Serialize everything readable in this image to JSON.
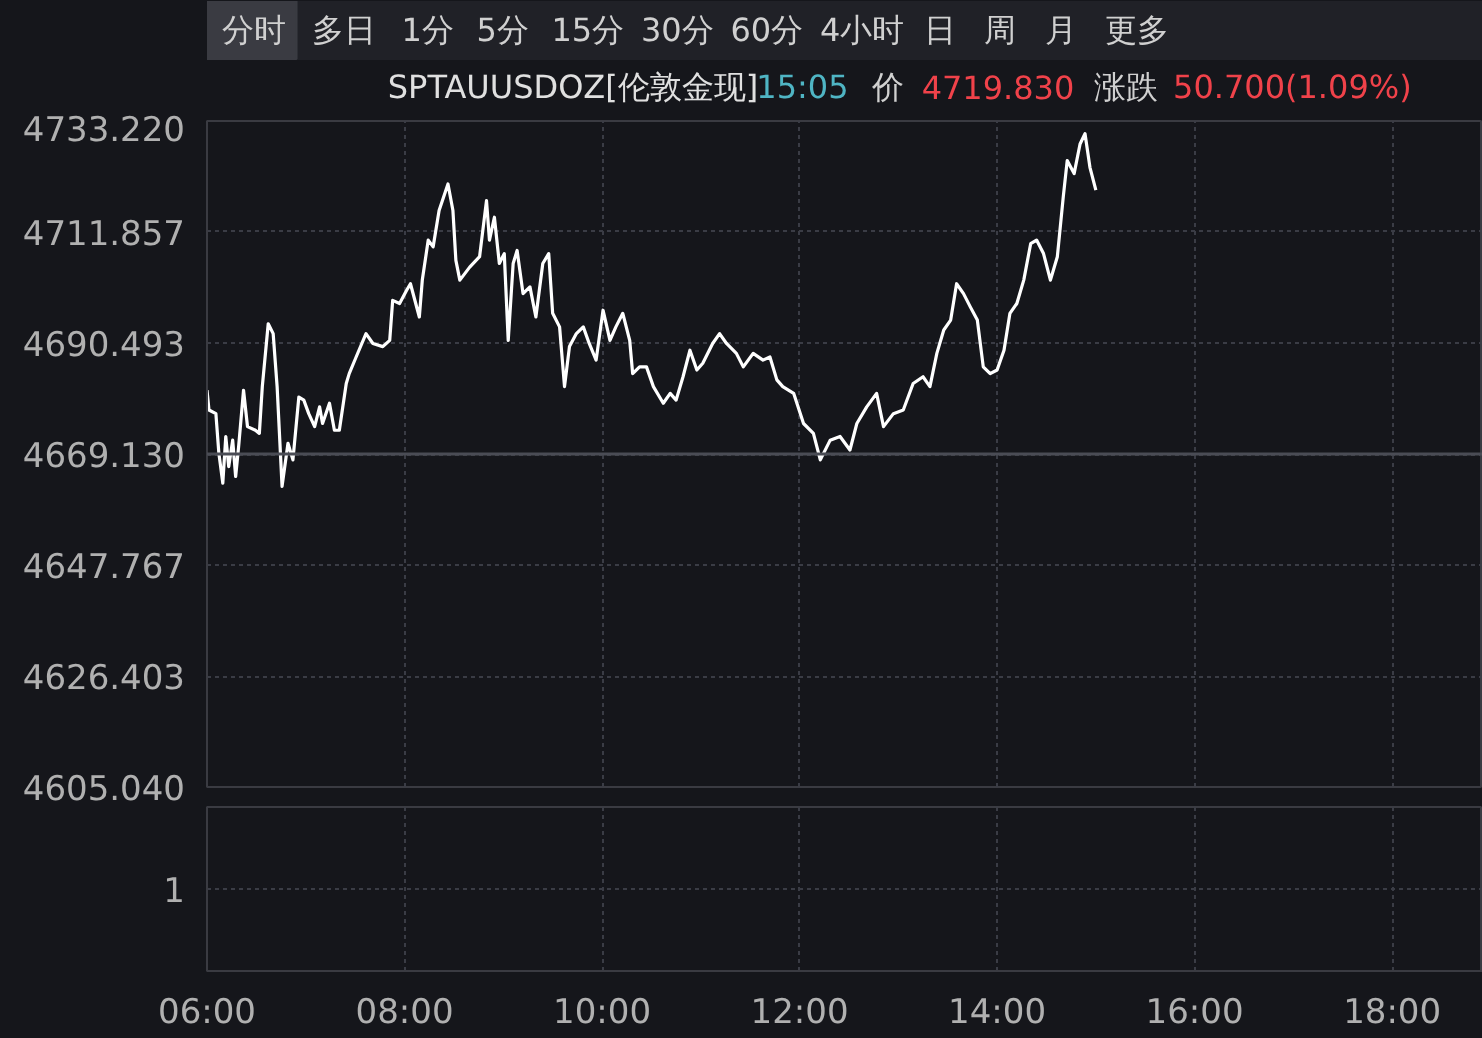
{
  "chart_data": [
    {
      "type": "line",
      "title": "SPTAUUSDOZ[伦敦金现]",
      "subtitle": "15:05 价 4719.830 涨跌 50.700(1.09%)",
      "annotations": [
        "分时",
        "多日",
        "1分",
        "5分",
        "15分",
        "30分",
        "60分",
        "4小时",
        "日",
        "周",
        "月",
        "更多"
      ],
      "x": [
        6.0,
        6.02,
        6.09,
        6.12,
        6.16,
        6.19,
        6.22,
        6.26,
        6.29,
        6.32,
        6.37,
        6.41,
        6.49,
        6.53,
        6.56,
        6.62,
        6.67,
        6.71,
        6.76,
        6.82,
        6.87,
        6.93,
        6.98,
        7.03,
        7.09,
        7.14,
        7.17,
        7.24,
        7.29,
        7.34,
        7.41,
        7.44,
        7.51,
        7.61,
        7.68,
        7.78,
        7.85,
        7.88,
        7.95,
        8.02,
        8.06,
        8.15,
        8.18,
        8.24,
        8.29,
        8.35,
        8.44,
        8.49,
        8.52,
        8.56,
        8.66,
        8.76,
        8.83,
        8.86,
        8.91,
        8.96,
        9.01,
        9.05,
        9.1,
        9.14,
        9.2,
        9.27,
        9.33,
        9.4,
        9.46,
        9.5,
        9.57,
        9.62,
        9.67,
        9.74,
        9.81,
        9.87,
        9.94,
        10.01,
        10.08,
        10.14,
        10.21,
        10.28,
        10.31,
        10.38,
        10.45,
        10.52,
        10.62,
        10.69,
        10.75,
        10.82,
        10.89,
        10.96,
        11.02,
        11.12,
        11.19,
        11.26,
        11.36,
        11.43,
        11.53,
        11.63,
        11.7,
        11.77,
        11.83,
        11.94,
        12.04,
        12.14,
        12.21,
        12.31,
        12.41,
        12.51,
        12.58,
        12.68,
        12.78,
        12.85,
        12.95,
        13.05,
        13.15,
        13.25,
        13.32,
        13.39,
        13.46,
        13.53,
        13.59,
        13.66,
        13.73,
        13.8,
        13.86,
        13.93,
        14.0,
        14.07,
        14.13,
        14.2,
        14.27,
        14.34,
        14.4,
        14.47,
        14.54,
        14.61,
        14.67,
        14.71,
        14.78,
        14.84,
        14.89,
        14.94,
        15.0
      ],
      "series": [
        {
          "color": "#ffffff",
          "values": [
            4681.4,
            4677.6,
            4676.9,
            4669.3,
            4663.5,
            4672.5,
            4666.7,
            4671.8,
            4664.8,
            4670.5,
            4681.4,
            4674.4,
            4673.7,
            4673.1,
            4682.1,
            4694.2,
            4692.3,
            4682.1,
            4662.9,
            4671.2,
            4668.0,
            4680.1,
            4679.5,
            4676.9,
            4674.4,
            4678.2,
            4675.0,
            4678.9,
            4673.7,
            4673.7,
            4682.7,
            4684.6,
            4687.8,
            4692.3,
            4690.4,
            4689.8,
            4691.0,
            4698.7,
            4698.1,
            4700.6,
            4701.9,
            4695.5,
            4702.6,
            4710.3,
            4709.0,
            4716.0,
            4721.1,
            4716.0,
            4706.4,
            4702.6,
            4705.1,
            4707.1,
            4717.9,
            4710.3,
            4714.7,
            4705.8,
            4707.7,
            4691.0,
            4705.8,
            4708.3,
            4700.0,
            4701.3,
            4695.5,
            4705.8,
            4707.7,
            4696.2,
            4693.6,
            4682.1,
            4689.8,
            4692.3,
            4693.6,
            4690.4,
            4687.2,
            4696.8,
            4691.0,
            4693.6,
            4696.2,
            4691.0,
            4684.6,
            4685.9,
            4685.9,
            4682.1,
            4678.9,
            4680.8,
            4679.5,
            4684.0,
            4689.1,
            4685.3,
            4686.6,
            4690.4,
            4692.3,
            4690.4,
            4688.5,
            4685.9,
            4688.5,
            4687.2,
            4687.8,
            4683.4,
            4682.1,
            4680.8,
            4675.0,
            4673.1,
            4668.0,
            4671.8,
            4672.5,
            4669.9,
            4675.0,
            4678.2,
            4680.8,
            4674.4,
            4676.9,
            4677.6,
            4682.7,
            4684.0,
            4682.1,
            4688.5,
            4693.0,
            4694.9,
            4701.9,
            4700.0,
            4697.4,
            4694.9,
            4685.9,
            4684.6,
            4685.3,
            4689.1,
            4696.2,
            4698.1,
            4702.6,
            4709.6,
            4710.3,
            4707.7,
            4702.6,
            4707.1,
            4718.6,
            4725.6,
            4723.1,
            4728.8,
            4730.8,
            4724.3,
            4719.9
          ]
        }
      ],
      "xlim": [
        6,
        18.92
      ],
      "xticks": [
        {
          "value": 6,
          "label": "06:00"
        },
        {
          "value": 8,
          "label": "08:00"
        },
        {
          "value": 10,
          "label": "10:00"
        },
        {
          "value": 12,
          "label": "12:00"
        },
        {
          "value": 14,
          "label": "14:00"
        },
        {
          "value": 16,
          "label": "16:00"
        },
        {
          "value": 18,
          "label": "18:00"
        }
      ],
      "ylim": [
        4605.04,
        4733.22
      ],
      "yticks": [
        {
          "value": 4605.04,
          "label": "4605.040"
        },
        {
          "value": 4626.403,
          "label": "4626.403"
        },
        {
          "value": 4647.767,
          "label": "4647.767"
        },
        {
          "value": 4669.13,
          "label": "4669.130"
        },
        {
          "value": 4690.493,
          "label": "4690.493"
        },
        {
          "value": 4711.857,
          "label": "4711.857"
        },
        {
          "value": 4733.22,
          "label": "4733.220"
        }
      ],
      "ref_lines": [
        {
          "axis": "y",
          "value": 4669.13,
          "color": "#4a4c55",
          "line_style": "solid"
        }
      ],
      "grid": true,
      "line_style": "solid"
    },
    {
      "type": "other",
      "annotations": [
        "1"
      ]
    }
  ]
}
